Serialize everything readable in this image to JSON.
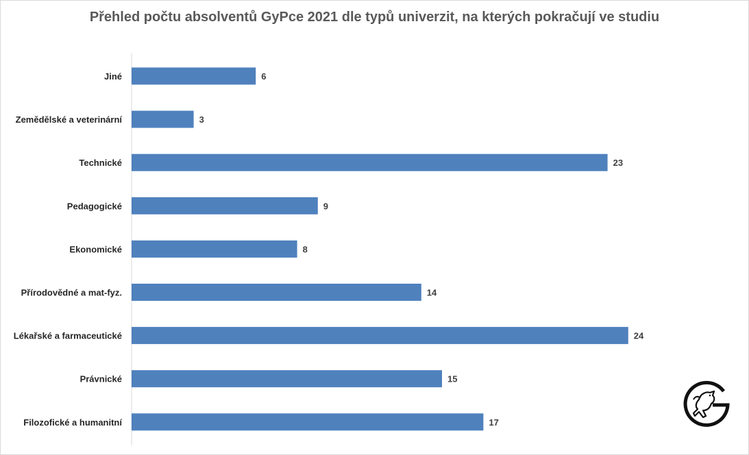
{
  "title": "Přehled počtu absolventů GyPce 2021 dle typů univerzit, na kterých pokračují ve studiu",
  "colors": {
    "bar": "#4f81bd",
    "axis": "#d9d9d9"
  },
  "logo_icon": "horse-logo-icon",
  "chart_data": {
    "type": "bar",
    "orientation": "horizontal",
    "categories": [
      "Jiné",
      "Zemědělské a veterinární",
      "Technické",
      "Pedagogické",
      "Ekonomické",
      "Přírodovědné a mat-fyz.",
      "Lékařské a farmaceutické",
      "Právnické",
      "Filozofické a humanitní"
    ],
    "values": [
      6,
      3,
      23,
      9,
      8,
      14,
      24,
      15,
      17
    ],
    "xlim": [
      0,
      25
    ],
    "grid": false,
    "legend": "none",
    "data_labels": true
  }
}
